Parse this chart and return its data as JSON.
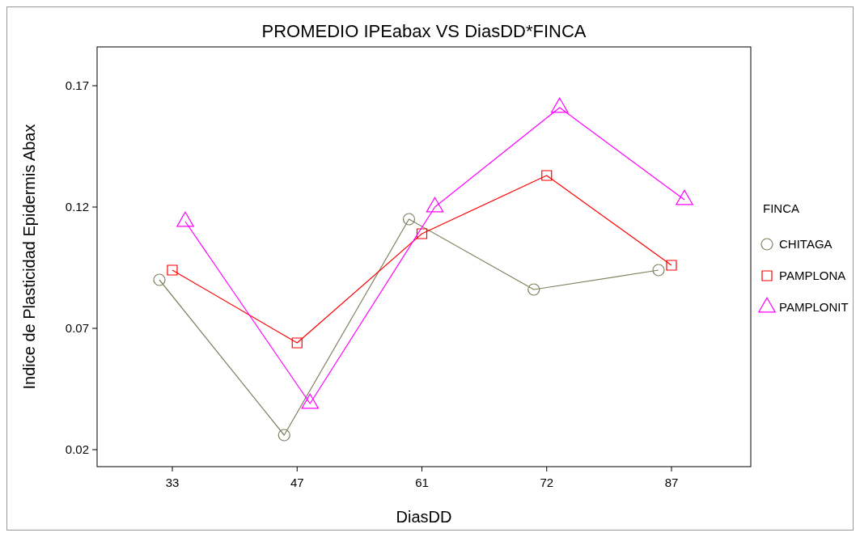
{
  "chart_data": {
    "type": "line",
    "title": "PROMEDIO IPEabax  VS  DiasDD*FINCA",
    "xlabel": "DiasDD",
    "ylabel": "Indice de Plasticidad Epidermis Abax",
    "legend_title": "FINCA",
    "legend": "right",
    "categories": [
      "33",
      "47",
      "61",
      "72",
      "87"
    ],
    "ylim": [
      0.013,
      0.186
    ],
    "yticks": [
      0.02,
      0.07,
      0.12,
      0.17
    ],
    "grid": false,
    "series": [
      {
        "name": "CHITAGA",
        "color": "#808060",
        "marker": "circle",
        "values": [
          0.09,
          0.026,
          0.115,
          0.086,
          0.094
        ]
      },
      {
        "name": "PAMPLONA",
        "color": "#ff0000",
        "marker": "square",
        "values": [
          0.094,
          0.064,
          0.109,
          0.133,
          0.096
        ]
      },
      {
        "name": "PAMPLONIT",
        "color": "#ff00ff",
        "marker": "triangle",
        "values": [
          0.114,
          0.039,
          0.12,
          0.161,
          0.123
        ]
      }
    ]
  }
}
